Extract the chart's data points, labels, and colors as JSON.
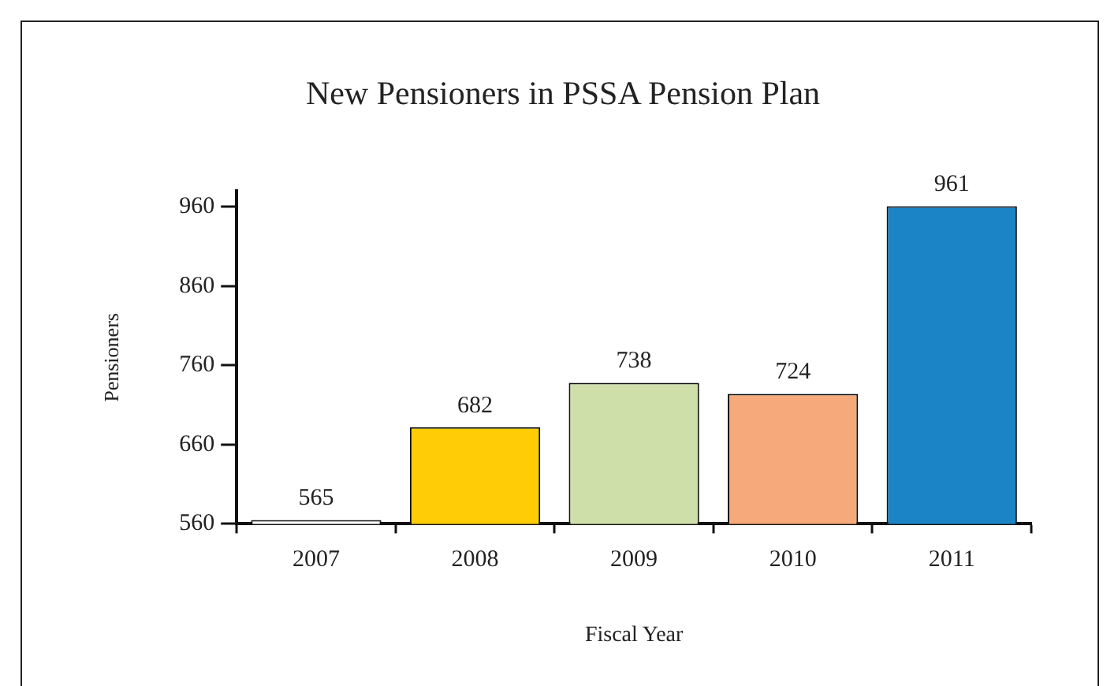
{
  "chart_data": {
    "type": "bar",
    "title": "New Pensioners in PSSA Pension Plan",
    "xlabel": "Fiscal Year",
    "ylabel": "Pensioners",
    "categories": [
      "2007",
      "2008",
      "2009",
      "2010",
      "2011"
    ],
    "values": [
      565,
      682,
      738,
      724,
      961
    ],
    "colors": [
      "#ffffff",
      "#ffcc05",
      "#cfdfaa",
      "#f6a97a",
      "#1b84c6"
    ],
    "ylim": [
      560,
      980
    ],
    "yticks": [
      560,
      660,
      760,
      860,
      960
    ],
    "data_labels": true,
    "grid": false,
    "legend": false
  }
}
